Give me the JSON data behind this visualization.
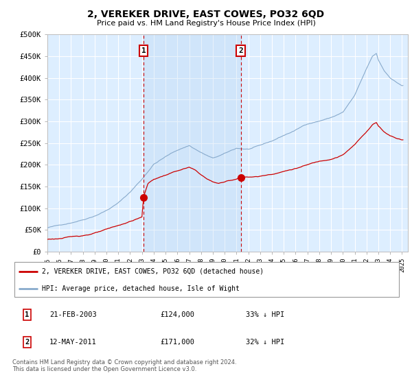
{
  "title": "2, VEREKER DRIVE, EAST COWES, PO32 6QD",
  "subtitle": "Price paid vs. HM Land Registry's House Price Index (HPI)",
  "ylim": [
    0,
    500000
  ],
  "yticks": [
    0,
    50000,
    100000,
    150000,
    200000,
    250000,
    300000,
    350000,
    400000,
    450000,
    500000
  ],
  "ytick_labels": [
    "£0",
    "£50K",
    "£100K",
    "£150K",
    "£200K",
    "£250K",
    "£300K",
    "£350K",
    "£400K",
    "£450K",
    "£500K"
  ],
  "xlim_start": 1995.0,
  "xlim_end": 2025.5,
  "sale1_year": 2003.13,
  "sale1_price": 124000,
  "sale2_year": 2011.36,
  "sale2_price": 171000,
  "line_color_property": "#cc0000",
  "line_color_hpi": "#88aacc",
  "fill_color": "#ddeeff",
  "background_color": "#ddeeff",
  "grid_color": "#ccccdd",
  "legend_label_property": "2, VEREKER DRIVE, EAST COWES, PO32 6QD (detached house)",
  "legend_label_hpi": "HPI: Average price, detached house, Isle of Wight",
  "table_row1_date": "21-FEB-2003",
  "table_row1_price": "£124,000",
  "table_row1_hpi": "33% ↓ HPI",
  "table_row2_date": "12-MAY-2011",
  "table_row2_price": "£171,000",
  "table_row2_hpi": "32% ↓ HPI",
  "footer": "Contains HM Land Registry data © Crown copyright and database right 2024.\nThis data is licensed under the Open Government Licence v3.0."
}
